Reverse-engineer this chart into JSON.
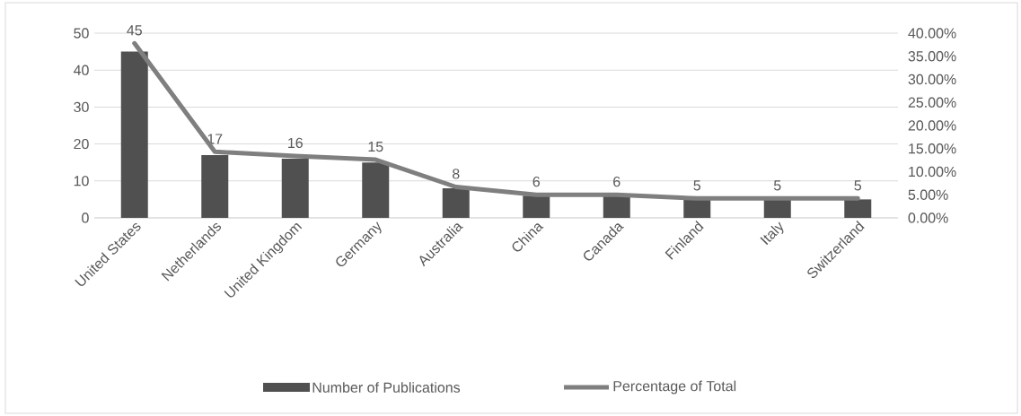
{
  "chart_data": {
    "type": "bar",
    "categories": [
      "United States",
      "Netherlands",
      "United Kingdom",
      "Germany",
      "Australia",
      "China",
      "Canada",
      "Finland",
      "Italy",
      "Switzerland"
    ],
    "series": [
      {
        "name": "Number of Publications",
        "color": "#505050",
        "values": [
          45,
          17,
          16,
          15,
          8,
          6,
          6,
          5,
          5,
          5
        ],
        "value_labels": [
          "45",
          "17",
          "16",
          "15",
          "8",
          "6",
          "6",
          "5",
          "5",
          "5"
        ]
      },
      {
        "name": "Percentage of Total",
        "type": "line",
        "axis": "y2",
        "color": "#7f7f7f",
        "values": [
          37.8,
          14.3,
          13.4,
          12.6,
          6.7,
          5.0,
          5.0,
          4.2,
          4.2,
          4.2
        ]
      }
    ],
    "ylim": [
      0,
      50
    ],
    "yticks": [
      0,
      10,
      20,
      30,
      40,
      50
    ],
    "y2lim": [
      0,
      40
    ],
    "y2ticks": [
      {
        "value": 0,
        "label": "0.00%"
      },
      {
        "value": 5,
        "label": "5.00%"
      },
      {
        "value": 10,
        "label": "10.00%"
      },
      {
        "value": 15,
        "label": "15.00%"
      },
      {
        "value": 20,
        "label": "20.00%"
      },
      {
        "value": 25,
        "label": "25.00%"
      },
      {
        "value": 30,
        "label": "30.00%"
      },
      {
        "value": 35,
        "label": "35.00%"
      },
      {
        "value": 40,
        "label": "40.00%"
      }
    ],
    "grid": "y",
    "legend": "bottom",
    "marker": "none",
    "line_style": "solid"
  }
}
